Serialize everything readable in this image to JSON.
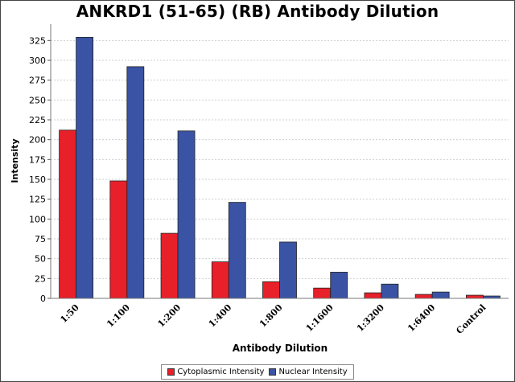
{
  "chart_data": {
    "type": "bar",
    "title": "ANKRD1 (51-65) (RB) Antibody Dilution",
    "xlabel": "Antibody Dilution",
    "ylabel": "Intensity",
    "categories": [
      "1:50",
      "1:100",
      "1:200",
      "1:400",
      "1:800",
      "1:1600",
      "1:3200",
      "1:6400",
      "Control"
    ],
    "series": [
      {
        "name": "Cytoplasmic Intensity",
        "color": "#e8202a",
        "values": [
          212,
          148,
          82,
          46,
          21,
          13,
          7,
          5,
          4
        ]
      },
      {
        "name": "Nuclear Intensity",
        "color": "#3a53a4",
        "values": [
          329,
          292,
          211,
          121,
          71,
          33,
          18,
          8,
          3
        ]
      }
    ],
    "ylim": [
      0,
      340
    ],
    "yticks": [
      0,
      25,
      50,
      75,
      100,
      125,
      150,
      175,
      200,
      225,
      250,
      275,
      300,
      325
    ],
    "grid": true,
    "legend_position": "bottom"
  }
}
